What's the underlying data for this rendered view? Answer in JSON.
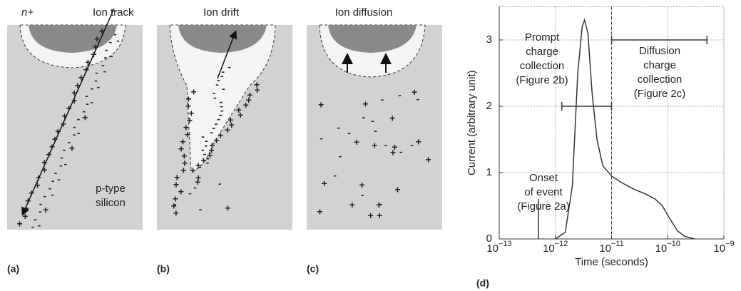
{
  "panels": [
    {
      "label": "(a)",
      "title": "Ion track",
      "doping": "n+",
      "substrate": [
        "p-type",
        "silicon"
      ]
    },
    {
      "label": "(b)",
      "title": "Ion drift"
    },
    {
      "label": "(c)",
      "title": "Ion diffusion"
    }
  ],
  "charge_symbols": {
    "plus": "+",
    "minus": "-"
  },
  "chart_data": {
    "type": "line",
    "panel_label": "(d)",
    "x_label": "Time (seconds)",
    "y_label": "Current (arbitrary unit)",
    "log_x": true,
    "grid": true,
    "xlim": [
      1e-13,
      1e-09
    ],
    "ylim": [
      0,
      3.5
    ],
    "xticks": [
      {
        "value": 1e-13,
        "label": "10−13"
      },
      {
        "value": 1e-12,
        "label": "10−12"
      },
      {
        "value": 1e-11,
        "label": "10−11"
      },
      {
        "value": 1e-10,
        "label": "10−10"
      },
      {
        "value": 1e-09,
        "label": "10−9"
      }
    ],
    "yticks": [
      0,
      1,
      2,
      3
    ],
    "series": [
      {
        "color": "#333333",
        "x": [
          1e-12,
          1.5e-12,
          2e-12,
          2.5e-12,
          3e-12,
          3.3e-12,
          3.8e-12,
          4.5e-12,
          5.5e-12,
          7e-12,
          1e-11,
          1.5e-11,
          2.5e-11,
          4e-11,
          6e-11,
          8e-11,
          1.1e-10,
          1.5e-10,
          2e-10,
          3e-10
        ],
        "values": [
          0,
          0.1,
          0.8,
          2.5,
          3.2,
          3.3,
          3.1,
          2.2,
          1.5,
          1.1,
          0.95,
          0.85,
          0.75,
          0.68,
          0.6,
          0.5,
          0.3,
          0.12,
          0.04,
          0
        ]
      }
    ],
    "divider_x": 1e-11,
    "onset": {
      "x": 5e-13,
      "y": [
        0,
        0.6
      ],
      "text": [
        "Onset",
        "of event",
        "(Figure 2a)"
      ]
    },
    "brackets": [
      {
        "x": [
          1.3e-12,
          1e-11
        ],
        "y": 2,
        "text": [
          "Prompt",
          "charge",
          "collection",
          "(Figure 2b)"
        ]
      },
      {
        "x": [
          1e-11,
          5e-10
        ],
        "y": 3,
        "text": [
          "Diffusion",
          "charge",
          "collection",
          "(Figure 2c)"
        ]
      }
    ]
  }
}
